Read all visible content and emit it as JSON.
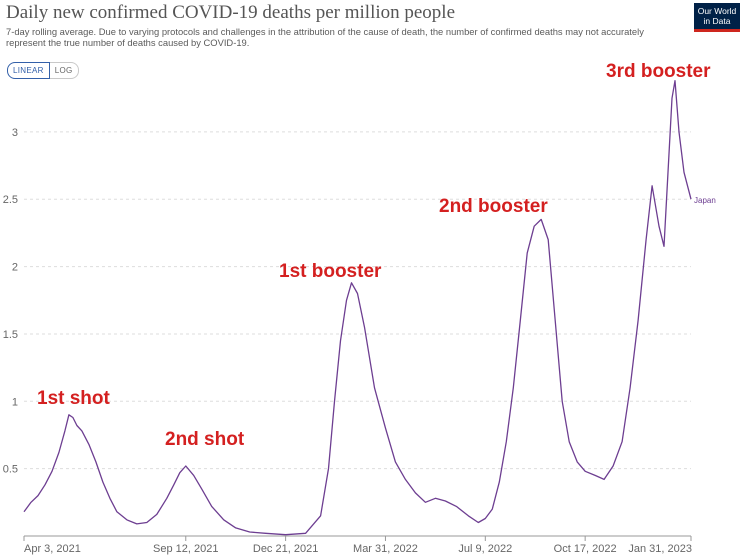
{
  "header": {
    "title": "Daily new confirmed COVID-19 deaths per million people",
    "subtitle": "7-day rolling average. Due to varying protocols and challenges in the attribution of the cause of death, the number of confirmed deaths may not accurately represent the true number of deaths caused by COVID-19.",
    "logo_line1": "Our World",
    "logo_line2": "in Data"
  },
  "controls": {
    "linear_label": "LINEAR",
    "log_label": "LOG"
  },
  "colors": {
    "series": "#6d3e91",
    "annotation": "#d42020",
    "grid": "#dddddd"
  },
  "chart_data": {
    "type": "line",
    "title": "Daily new confirmed COVID-19 deaths per million people",
    "xlabel": "",
    "ylabel": "",
    "ylim": [
      0,
      3.4
    ],
    "yticks": [
      0.5,
      1,
      1.5,
      2,
      2.5,
      3
    ],
    "ytick_labels": [
      "0.5",
      "1",
      "1.5",
      "2",
      "2.5",
      "3"
    ],
    "xlim": [
      "2021-04-03",
      "2023-01-31"
    ],
    "xticks": [
      "2021-04-03",
      "2021-09-12",
      "2021-12-21",
      "2022-03-31",
      "2022-07-09",
      "2022-10-17",
      "2023-01-31"
    ],
    "xtick_labels": [
      "Apr 3, 2021",
      "Sep 12, 2021",
      "Dec 21, 2021",
      "Mar 31, 2022",
      "Jul 9, 2022",
      "Oct 17, 2022",
      "Jan 31, 2023"
    ],
    "grid": true,
    "series": [
      {
        "name": "Japan",
        "x": [
          "2021-04-03",
          "2021-04-10",
          "2021-04-17",
          "2021-04-24",
          "2021-05-01",
          "2021-05-08",
          "2021-05-14",
          "2021-05-18",
          "2021-05-22",
          "2021-05-26",
          "2021-05-31",
          "2021-06-07",
          "2021-06-14",
          "2021-06-21",
          "2021-06-28",
          "2021-07-05",
          "2021-07-15",
          "2021-07-25",
          "2021-08-04",
          "2021-08-14",
          "2021-08-24",
          "2021-08-31",
          "2021-09-06",
          "2021-09-12",
          "2021-09-20",
          "2021-09-28",
          "2021-10-08",
          "2021-10-20",
          "2021-11-01",
          "2021-11-15",
          "2021-12-01",
          "2021-12-21",
          "2022-01-10",
          "2022-01-25",
          "2022-02-02",
          "2022-02-08",
          "2022-02-14",
          "2022-02-20",
          "2022-02-25",
          "2022-03-03",
          "2022-03-10",
          "2022-03-20",
          "2022-03-31",
          "2022-04-10",
          "2022-04-20",
          "2022-04-30",
          "2022-05-10",
          "2022-05-20",
          "2022-05-30",
          "2022-06-10",
          "2022-06-22",
          "2022-07-02",
          "2022-07-09",
          "2022-07-16",
          "2022-07-23",
          "2022-07-30",
          "2022-08-06",
          "2022-08-13",
          "2022-08-20",
          "2022-08-27",
          "2022-09-03",
          "2022-09-10",
          "2022-09-17",
          "2022-09-24",
          "2022-10-01",
          "2022-10-09",
          "2022-10-17",
          "2022-10-27",
          "2022-11-05",
          "2022-11-14",
          "2022-11-23",
          "2022-12-01",
          "2022-12-09",
          "2022-12-17",
          "2022-12-23",
          "2022-12-30",
          "2023-01-04",
          "2023-01-08",
          "2023-01-12",
          "2023-01-15",
          "2023-01-19",
          "2023-01-24",
          "2023-01-31"
        ],
        "y": [
          0.18,
          0.25,
          0.3,
          0.38,
          0.48,
          0.62,
          0.78,
          0.9,
          0.88,
          0.82,
          0.78,
          0.68,
          0.55,
          0.4,
          0.28,
          0.18,
          0.12,
          0.09,
          0.1,
          0.16,
          0.28,
          0.38,
          0.47,
          0.52,
          0.45,
          0.35,
          0.22,
          0.12,
          0.06,
          0.03,
          0.02,
          0.01,
          0.02,
          0.15,
          0.5,
          1.0,
          1.45,
          1.75,
          1.88,
          1.8,
          1.55,
          1.1,
          0.8,
          0.55,
          0.42,
          0.32,
          0.25,
          0.28,
          0.26,
          0.22,
          0.15,
          0.1,
          0.13,
          0.2,
          0.4,
          0.7,
          1.1,
          1.6,
          2.1,
          2.3,
          2.35,
          2.2,
          1.6,
          1.0,
          0.7,
          0.55,
          0.48,
          0.45,
          0.42,
          0.52,
          0.7,
          1.1,
          1.6,
          2.2,
          2.6,
          2.3,
          2.15,
          2.7,
          3.25,
          3.38,
          3.0,
          2.7,
          2.5
        ]
      }
    ],
    "annotations": [
      "1st shot",
      "2nd shot",
      "1st booster",
      "2nd booster",
      "3rd booster"
    ],
    "series_end_label": "Japan"
  }
}
